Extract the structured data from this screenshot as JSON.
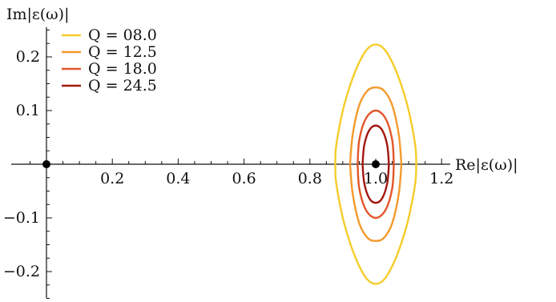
{
  "chart_data": {
    "type": "line",
    "xlabel": "Re|ε(ω)|",
    "ylabel": "Im|ε(ω)|",
    "xlim": [
      0,
      1.2
    ],
    "ylim": [
      -0.25,
      0.25
    ],
    "x_ticks": [
      0.2,
      0.4,
      0.6,
      0.8,
      1.0,
      1.2
    ],
    "x_tick_labels": [
      "0.2",
      "0.4",
      "0.6",
      "0.8",
      "1.0",
      "1.2"
    ],
    "y_ticks": [
      0.2,
      0.1,
      -0.1,
      -0.2
    ],
    "y_tick_labels": [
      "0.2",
      "0.1",
      "−0.1",
      "−0.2"
    ],
    "legend_position": "top-left",
    "series": [
      {
        "name": "Q = 08.0",
        "color": "#f5cc2a",
        "upper": {
          "x": [
            0.877,
            0.88,
            0.9,
            0.925,
            0.95,
            0.975,
            1.0,
            1.025,
            1.05,
            1.075,
            1.1,
            1.12,
            1.123
          ],
          "y": [
            0.0,
            0.035,
            0.1,
            0.152,
            0.19,
            0.215,
            0.223,
            0.215,
            0.19,
            0.152,
            0.1,
            0.035,
            0.0
          ]
        },
        "lower": {
          "x": [
            0.877,
            0.88,
            0.9,
            0.925,
            0.95,
            0.975,
            1.0,
            1.025,
            1.05,
            1.075,
            1.1,
            1.12,
            1.123
          ],
          "y": [
            0.0,
            -0.035,
            -0.1,
            -0.152,
            -0.19,
            -0.215,
            -0.223,
            -0.215,
            -0.19,
            -0.152,
            -0.1,
            -0.035,
            0.0
          ]
        }
      },
      {
        "name": "Q = 12.5",
        "color": "#f39a2e",
        "upper": {
          "x": [
            0.922,
            0.93,
            0.95,
            0.975,
            1.0,
            1.025,
            1.05,
            1.07,
            1.078
          ],
          "y": [
            0.0,
            0.055,
            0.11,
            0.137,
            0.143,
            0.137,
            0.11,
            0.055,
            0.0
          ]
        },
        "lower": {
          "x": [
            0.922,
            0.93,
            0.95,
            0.975,
            1.0,
            1.025,
            1.05,
            1.07,
            1.078
          ],
          "y": [
            0.0,
            -0.055,
            -0.11,
            -0.137,
            -0.143,
            -0.137,
            -0.11,
            -0.055,
            0.0
          ]
        }
      },
      {
        "name": "Q = 18.0",
        "color": "#e2562a",
        "upper": {
          "x": [
            0.945,
            0.95,
            0.97,
            1.0,
            1.03,
            1.05,
            1.055
          ],
          "y": [
            0.0,
            0.045,
            0.085,
            0.1,
            0.085,
            0.045,
            0.0
          ]
        },
        "lower": {
          "x": [
            0.945,
            0.95,
            0.97,
            1.0,
            1.03,
            1.05,
            1.055
          ],
          "y": [
            0.0,
            -0.045,
            -0.085,
            -0.1,
            -0.085,
            -0.045,
            0.0
          ]
        }
      },
      {
        "name": "Q = 24.5",
        "color": "#a3160f",
        "upper": {
          "x": [
            0.96,
            0.965,
            0.98,
            1.0,
            1.02,
            1.035,
            1.04
          ],
          "y": [
            0.0,
            0.035,
            0.063,
            0.072,
            0.063,
            0.035,
            0.0
          ]
        },
        "lower": {
          "x": [
            0.96,
            0.965,
            0.98,
            1.0,
            1.02,
            1.035,
            1.04
          ],
          "y": [
            0.0,
            -0.035,
            -0.063,
            -0.072,
            -0.063,
            -0.035,
            0.0
          ]
        }
      }
    ],
    "markers": [
      {
        "x": 0.0,
        "y": 0.0
      },
      {
        "x": 1.0,
        "y": 0.0
      }
    ],
    "colors": {
      "axis": "#111111",
      "marker": "#000000"
    }
  }
}
